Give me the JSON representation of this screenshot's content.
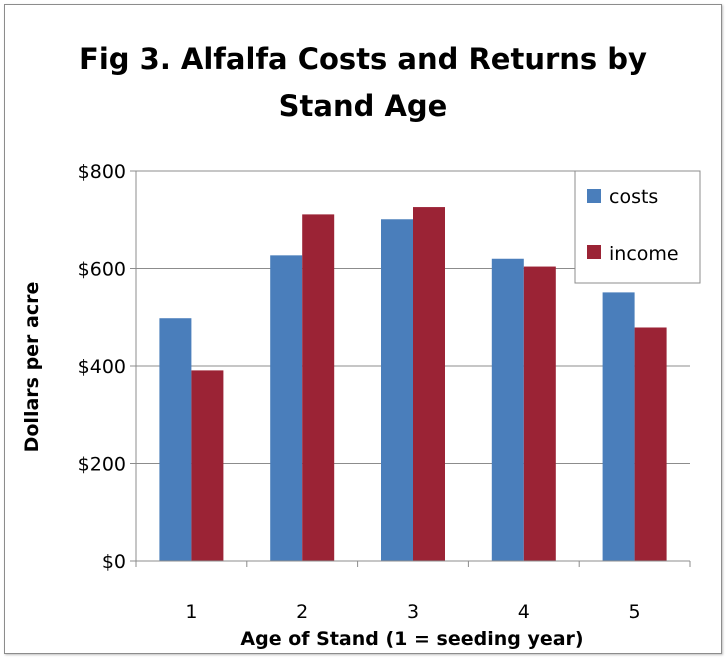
{
  "chart_data": {
    "type": "bar",
    "title_lines": [
      "Fig 3. Alfalfa Costs and Returns by",
      "Stand Age"
    ],
    "xlabel": "Age of Stand  (1 = seeding year)",
    "ylabel": "Dollars per acre",
    "categories": [
      "1",
      "2",
      "3",
      "4",
      "5"
    ],
    "series": [
      {
        "name": "costs",
        "color": "#4A7EBB",
        "values": [
          498,
          627,
          701,
          620,
          551
        ]
      },
      {
        "name": "income",
        "color": "#9B2335",
        "values": [
          391,
          711,
          726,
          604,
          479
        ]
      }
    ],
    "ylim": [
      0,
      800
    ],
    "y_ticks": [
      0,
      200,
      400,
      600,
      800
    ],
    "y_tick_labels": [
      "$0",
      "$200",
      "$400",
      "$600",
      "$800"
    ],
    "grid": true,
    "legend_position": "top-right"
  }
}
